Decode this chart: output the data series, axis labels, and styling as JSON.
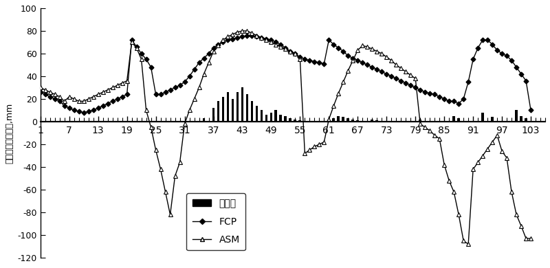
{
  "ylabel": "田面水深及降雨量,mm",
  "ylim": [
    -120,
    100
  ],
  "yticks": [
    -120,
    -100,
    -80,
    -60,
    -40,
    -20,
    0,
    20,
    40,
    60,
    80,
    100
  ],
  "xticks": [
    1,
    7,
    13,
    19,
    25,
    31,
    37,
    43,
    49,
    55,
    61,
    67,
    73,
    79,
    85,
    91,
    97,
    103
  ],
  "xlim": [
    1,
    106
  ],
  "fcp_x": [
    1,
    2,
    3,
    4,
    5,
    6,
    7,
    8,
    9,
    10,
    11,
    12,
    13,
    14,
    15,
    16,
    17,
    18,
    19,
    20,
    21,
    22,
    23,
    24,
    25,
    26,
    27,
    28,
    29,
    30,
    31,
    32,
    33,
    34,
    35,
    36,
    37,
    38,
    39,
    40,
    41,
    42,
    43,
    44,
    45,
    46,
    47,
    48,
    49,
    50,
    51,
    52,
    53,
    54,
    55,
    56,
    57,
    58,
    59,
    60,
    61,
    62,
    63,
    64,
    65,
    66,
    67,
    68,
    69,
    70,
    71,
    72,
    73,
    74,
    75,
    76,
    77,
    78,
    79,
    80,
    81,
    82,
    83,
    84,
    85,
    86,
    87,
    88,
    89,
    90,
    91,
    92,
    93,
    94,
    95,
    96,
    97,
    98,
    99,
    100,
    101,
    102,
    103
  ],
  "fcp_y": [
    26,
    24,
    22,
    20,
    18,
    14,
    12,
    10,
    9,
    8,
    9,
    10,
    12,
    14,
    16,
    18,
    20,
    22,
    24,
    72,
    66,
    60,
    55,
    48,
    24,
    24,
    26,
    28,
    30,
    32,
    35,
    40,
    46,
    52,
    56,
    60,
    65,
    68,
    70,
    72,
    73,
    74,
    75,
    76,
    76,
    75,
    74,
    73,
    72,
    70,
    68,
    65,
    62,
    60,
    57,
    55,
    54,
    53,
    52,
    51,
    72,
    68,
    65,
    62,
    58,
    56,
    54,
    52,
    50,
    48,
    46,
    44,
    42,
    40,
    38,
    36,
    34,
    32,
    30,
    28,
    26,
    25,
    24,
    22,
    20,
    18,
    18,
    16,
    20,
    35,
    55,
    65,
    72,
    72,
    68,
    63,
    60,
    58,
    54,
    48,
    42,
    36,
    10
  ],
  "asm_x": [
    1,
    2,
    3,
    4,
    5,
    6,
    7,
    8,
    9,
    10,
    11,
    12,
    13,
    14,
    15,
    16,
    17,
    18,
    19,
    20,
    21,
    22,
    23,
    24,
    25,
    26,
    27,
    28,
    29,
    30,
    31,
    32,
    33,
    34,
    35,
    36,
    37,
    38,
    39,
    40,
    41,
    42,
    43,
    44,
    45,
    46,
    47,
    48,
    49,
    50,
    51,
    52,
    53,
    54,
    55,
    56,
    57,
    58,
    59,
    60,
    61,
    62,
    63,
    64,
    65,
    66,
    67,
    68,
    69,
    70,
    71,
    72,
    73,
    74,
    75,
    76,
    77,
    78,
    79,
    80,
    81,
    82,
    83,
    84,
    85,
    86,
    87,
    88,
    89,
    90,
    91,
    92,
    93,
    94,
    95,
    96,
    97,
    98,
    99,
    100,
    101,
    102,
    103
  ],
  "asm_y": [
    30,
    28,
    26,
    24,
    22,
    18,
    22,
    20,
    18,
    18,
    20,
    22,
    24,
    26,
    28,
    30,
    32,
    34,
    36,
    70,
    65,
    55,
    10,
    -5,
    -25,
    -42,
    -62,
    -82,
    -48,
    -36,
    -2,
    10,
    20,
    30,
    42,
    52,
    62,
    67,
    72,
    75,
    77,
    79,
    80,
    80,
    78,
    76,
    74,
    72,
    70,
    68,
    66,
    64,
    62,
    60,
    55,
    -28,
    -25,
    -22,
    -20,
    -18,
    2,
    14,
    25,
    35,
    45,
    54,
    63,
    67,
    66,
    64,
    62,
    60,
    57,
    54,
    50,
    47,
    44,
    41,
    38,
    -2,
    -5,
    -8,
    -12,
    -15,
    -38,
    -52,
    -62,
    -82,
    -105,
    -108,
    -42,
    -36,
    -30,
    -24,
    -18,
    -12,
    -26,
    -32,
    -62,
    -82,
    -92,
    -103,
    -103
  ],
  "rain_x": [
    35,
    36,
    37,
    38,
    39,
    40,
    41,
    42,
    43,
    44,
    45,
    46,
    47,
    48,
    49,
    50,
    51,
    52,
    53,
    54,
    55,
    61,
    62,
    63,
    64,
    65,
    66,
    67,
    68,
    69,
    70,
    71,
    72,
    73,
    74,
    75,
    80,
    85,
    86,
    87,
    88,
    91,
    92,
    93,
    94,
    95,
    99,
    100,
    101,
    102
  ],
  "rain_y": [
    3,
    0,
    12,
    18,
    22,
    26,
    20,
    26,
    30,
    24,
    18,
    14,
    10,
    6,
    8,
    10,
    6,
    5,
    3,
    2,
    1,
    2,
    3,
    5,
    4,
    3,
    2,
    1,
    0,
    0,
    2,
    1,
    0,
    0,
    0,
    0,
    2,
    0,
    0,
    5,
    3,
    0,
    0,
    8,
    0,
    4,
    0,
    10,
    5,
    3
  ],
  "legend_labels": [
    "降雨量",
    "FCP",
    "ASM"
  ],
  "line_color": "black",
  "bar_color": "black",
  "bg_color": "white"
}
